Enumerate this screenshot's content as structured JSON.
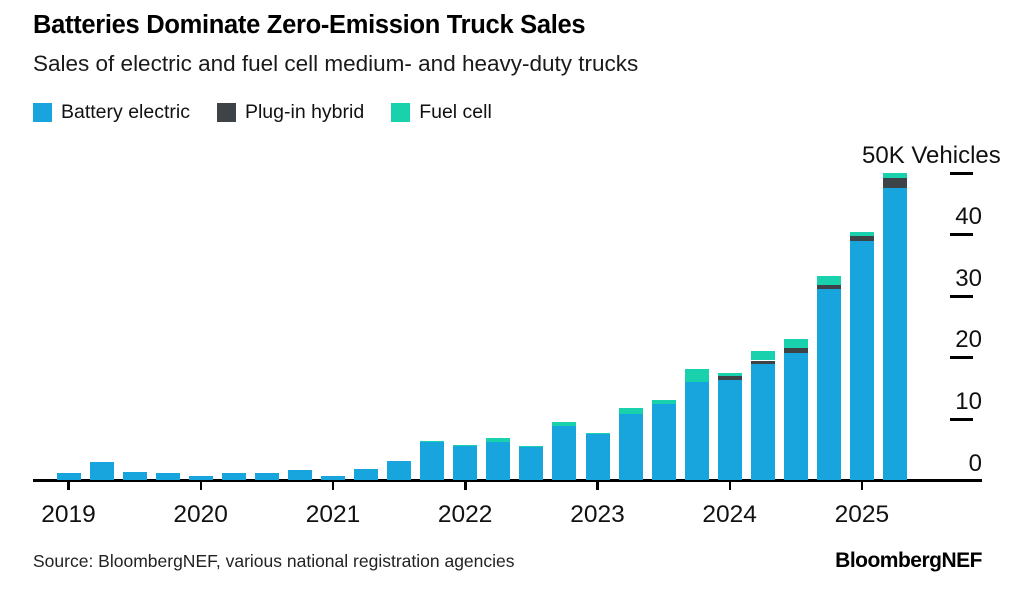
{
  "footer": {
    "source": "Source: BloombergNEF, various national registration agencies",
    "logo": "BloombergNEF"
  },
  "chart_data": {
    "type": "bar",
    "stacked": true,
    "title": "Batteries Dominate Zero-Emission Truck Sales",
    "subtitle": "Sales of electric and fuel cell medium- and heavy-duty trucks",
    "unit": "K Vehicles",
    "value_unit_thousands": true,
    "legend_position": "top-left",
    "grid": false,
    "ylim": [
      0,
      50
    ],
    "yticks": [
      {
        "value": 0,
        "label": "0"
      },
      {
        "value": 10,
        "label": "10"
      },
      {
        "value": 20,
        "label": "20"
      },
      {
        "value": 30,
        "label": "30"
      },
      {
        "value": 40,
        "label": "40"
      },
      {
        "value": 50,
        "label": "50K Vehicles"
      }
    ],
    "categories": [
      "2019 Q1",
      "2019 Q2",
      "2019 Q3",
      "2019 Q4",
      "2020 Q1",
      "2020 Q2",
      "2020 Q3",
      "2020 Q4",
      "2021 Q1",
      "2021 Q2",
      "2021 Q3",
      "2021 Q4",
      "2022 Q1",
      "2022 Q2",
      "2022 Q3",
      "2022 Q4",
      "2023 Q1",
      "2023 Q2",
      "2023 Q3",
      "2023 Q4",
      "2024 Q1",
      "2024 Q2",
      "2024 Q3",
      "2024 Q4",
      "2025 Q1",
      "2025 Q2"
    ],
    "year_ticks": [
      {
        "label": "2019",
        "index": 0
      },
      {
        "label": "2020",
        "index": 4
      },
      {
        "label": "2021",
        "index": 8
      },
      {
        "label": "2022",
        "index": 12
      },
      {
        "label": "2023",
        "index": 16
      },
      {
        "label": "2024",
        "index": 20
      },
      {
        "label": "2025",
        "index": 24
      }
    ],
    "series": [
      {
        "name": "Battery electric",
        "color": "#18A5DE",
        "values": [
          1.1,
          2.9,
          1.3,
          1.2,
          0.7,
          1.2,
          1.2,
          1.6,
          0.7,
          1.8,
          3.1,
          6.1,
          5.5,
          6.1,
          5.4,
          8.7,
          7.4,
          10.7,
          12.3,
          15.9,
          16.2,
          18.9,
          20.6,
          31.0,
          38.8,
          47.4
        ]
      },
      {
        "name": "Plug-in hybrid",
        "color": "#3D4347",
        "values": [
          0,
          0,
          0,
          0,
          0,
          0,
          0,
          0,
          0,
          0,
          0,
          0,
          0,
          0,
          0,
          0,
          0,
          0,
          0,
          0,
          0.7,
          0.5,
          0.8,
          0.6,
          0.8,
          1.6
        ]
      },
      {
        "name": "Fuel cell",
        "color": "#1AD1AE",
        "values": [
          0,
          0,
          0,
          0,
          0,
          0,
          0,
          0,
          0,
          0,
          0,
          0.3,
          0.2,
          0.8,
          0.2,
          0.8,
          0.2,
          1.0,
          0.7,
          2.2,
          0.5,
          1.5,
          1.5,
          1.5,
          0.6,
          0.9
        ]
      }
    ]
  }
}
